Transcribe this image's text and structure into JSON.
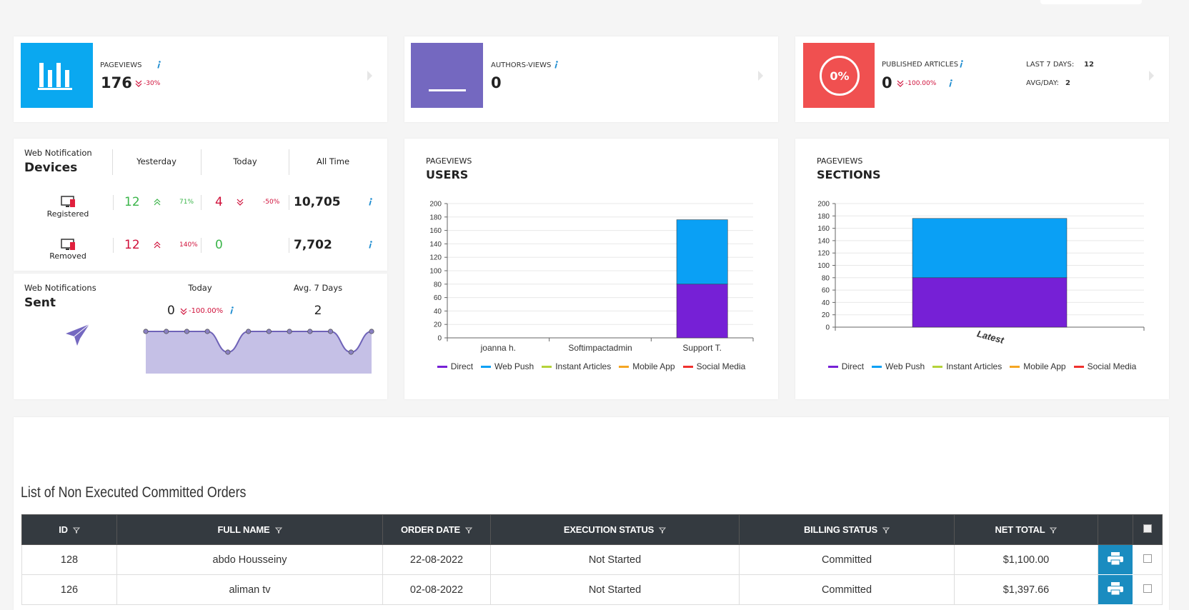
{
  "cards": [
    {
      "label": "PAGEVIEWS",
      "value": 176,
      "change": "-30%"
    },
    {
      "label": "AUTHORS-VIEWS",
      "value": 0
    },
    {
      "icon": "0%",
      "label": "PUBLISHED ARTICLES",
      "value": 0,
      "change": "-100.00%",
      "last7_label": "LAST 7 DAYS:",
      "last7": 12,
      "avg_label": "AVG/DAY:",
      "avg": 2
    }
  ],
  "devices": {
    "kicker": "Web Notification",
    "title": "Devices",
    "columns": [
      "Yesterday",
      "Today",
      "All Time"
    ],
    "rows": [
      {
        "name": "Registered",
        "yesterday": 12,
        "yesterday_change": "71%",
        "today": 4,
        "today_change": "-50%",
        "all_time": "10,705"
      },
      {
        "name": "Removed",
        "yesterday": 12,
        "yesterday_change": "140%",
        "today": 0,
        "all_time": "7,702"
      }
    ]
  },
  "sent": {
    "kicker": "Web Notifications",
    "title": "Sent",
    "columns": [
      "Today",
      "Avg. 7 Days"
    ],
    "today": 0,
    "today_change": "-100.00%",
    "avg": 2,
    "sparkline": [
      1,
      1,
      1,
      1,
      0,
      1,
      1,
      1,
      1,
      1,
      0,
      1
    ]
  },
  "users_chart": {
    "type": "bar",
    "stacked": true,
    "title": "PAGEVIEWS",
    "subtitle": "USERS",
    "categories": [
      "joanna h.",
      "Softimpactadmin",
      "Support T."
    ],
    "series": [
      {
        "name": "Direct",
        "color": "#7620d6",
        "values": [
          0,
          0,
          80
        ]
      },
      {
        "name": "Web Push",
        "color": "#0aa0f5",
        "values": [
          0,
          0,
          96
        ]
      },
      {
        "name": "Instant Articles",
        "color": "#b5d33a",
        "values": [
          0,
          0,
          0
        ]
      },
      {
        "name": "Mobile App",
        "color": "#f5a623",
        "values": [
          0,
          0,
          0
        ]
      },
      {
        "name": "Social Media",
        "color": "#f0312e",
        "values": [
          0,
          0,
          0
        ]
      }
    ],
    "ylim": [
      0,
      200
    ],
    "yticks": [
      0,
      20,
      40,
      60,
      80,
      100,
      120,
      140,
      160,
      180,
      200
    ],
    "grid": true,
    "legend": "bottom"
  },
  "sections_chart": {
    "type": "bar",
    "stacked": true,
    "title": "PAGEVIEWS",
    "subtitle": "SECTIONS",
    "categories": [
      "Latest"
    ],
    "series": [
      {
        "name": "Direct",
        "color": "#7620d6",
        "values": [
          80
        ]
      },
      {
        "name": "Web Push",
        "color": "#0aa0f5",
        "values": [
          96
        ]
      },
      {
        "name": "Instant Articles",
        "color": "#b5d33a",
        "values": [
          0
        ]
      },
      {
        "name": "Mobile App",
        "color": "#f5a623",
        "values": [
          0
        ]
      },
      {
        "name": "Social Media",
        "color": "#f0312e",
        "values": [
          0
        ]
      }
    ],
    "ylim": [
      0,
      200
    ],
    "yticks": [
      0,
      20,
      40,
      60,
      80,
      100,
      120,
      140,
      160,
      180,
      200
    ],
    "grid": true,
    "legend": "bottom"
  },
  "orders": {
    "title": "List of Non Executed Committed Orders",
    "columns": [
      "ID",
      "FULL NAME",
      "ORDER DATE",
      "EXECUTION STATUS",
      "BILLING STATUS",
      "NET TOTAL"
    ],
    "rows": [
      [
        "128",
        "abdo Housseiny",
        "22-08-2022",
        "Not Started",
        "Committed",
        "$1,100.00"
      ],
      [
        "126",
        "aliman tv",
        "02-08-2022",
        "Not Started",
        "Committed",
        "$1,397.66"
      ]
    ]
  }
}
